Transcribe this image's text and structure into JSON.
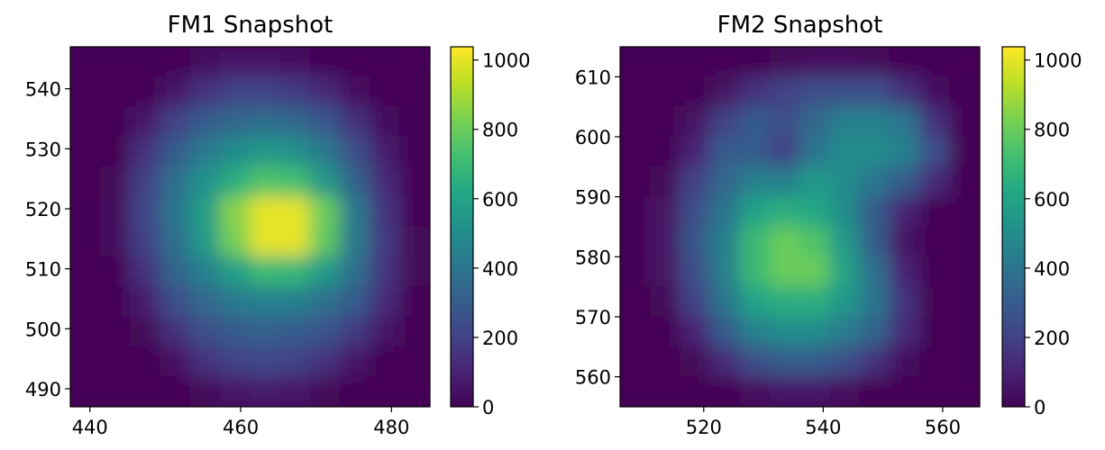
{
  "chart_data": [
    {
      "type": "heatmap",
      "title": "FM1 Snapshot",
      "colormap": "viridis",
      "xlim": [
        437.4,
        485.1
      ],
      "ylim": [
        487,
        547
      ],
      "xticks": [
        440,
        460,
        480
      ],
      "yticks": [
        490,
        500,
        510,
        520,
        530,
        540
      ],
      "clim": [
        0,
        1038
      ],
      "cticks": [
        0,
        200,
        400,
        600,
        800,
        1000
      ],
      "z": [
        [
          0,
          0,
          0,
          0,
          30,
          60,
          60,
          40,
          10,
          0,
          0,
          0
        ],
        [
          0,
          0,
          0,
          60,
          150,
          200,
          200,
          180,
          120,
          40,
          0,
          0
        ],
        [
          0,
          0,
          60,
          200,
          300,
          350,
          370,
          350,
          280,
          150,
          30,
          0
        ],
        [
          0,
          0,
          150,
          300,
          420,
          500,
          550,
          520,
          420,
          250,
          80,
          0
        ],
        [
          0,
          20,
          200,
          380,
          520,
          650,
          750,
          720,
          550,
          330,
          120,
          0
        ],
        [
          0,
          30,
          220,
          400,
          580,
          850,
          1000,
          1000,
          800,
          420,
          160,
          10
        ],
        [
          0,
          30,
          200,
          380,
          560,
          820,
          1000,
          1000,
          780,
          420,
          170,
          20
        ],
        [
          0,
          10,
          150,
          330,
          450,
          580,
          700,
          680,
          560,
          380,
          160,
          20
        ],
        [
          0,
          0,
          80,
          250,
          350,
          420,
          450,
          450,
          380,
          300,
          120,
          0
        ],
        [
          0,
          0,
          20,
          150,
          250,
          300,
          320,
          300,
          270,
          180,
          60,
          0
        ],
        [
          0,
          0,
          0,
          40,
          150,
          200,
          220,
          200,
          150,
          60,
          0,
          0
        ],
        [
          0,
          0,
          0,
          0,
          20,
          60,
          80,
          60,
          20,
          0,
          0,
          0
        ]
      ]
    },
    {
      "type": "heatmap",
      "title": "FM2 Snapshot",
      "colormap": "viridis",
      "xlim": [
        506,
        566.2
      ],
      "ylim": [
        555,
        615
      ],
      "xticks": [
        520,
        540,
        560
      ],
      "yticks": [
        560,
        570,
        580,
        590,
        600,
        610
      ],
      "clim": [
        0,
        1038
      ],
      "cticks": [
        0,
        200,
        400,
        600,
        800,
        1000
      ],
      "z": [
        [
          0,
          0,
          0,
          0,
          0,
          20,
          40,
          40,
          20,
          0,
          0,
          0
        ],
        [
          0,
          0,
          0,
          50,
          150,
          200,
          250,
          250,
          250,
          150,
          30,
          0
        ],
        [
          0,
          0,
          50,
          200,
          300,
          250,
          350,
          450,
          450,
          400,
          150,
          0
        ],
        [
          0,
          0,
          100,
          300,
          300,
          200,
          400,
          500,
          500,
          450,
          250,
          0
        ],
        [
          0,
          20,
          200,
          350,
          450,
          450,
          550,
          500,
          400,
          300,
          120,
          0
        ],
        [
          0,
          50,
          250,
          400,
          600,
          650,
          620,
          500,
          300,
          100,
          0,
          0
        ],
        [
          0,
          60,
          280,
          450,
          700,
          800,
          750,
          550,
          300,
          50,
          0,
          0
        ],
        [
          0,
          50,
          250,
          450,
          700,
          800,
          800,
          600,
          380,
          100,
          0,
          0
        ],
        [
          0,
          20,
          200,
          400,
          600,
          650,
          650,
          550,
          400,
          150,
          0,
          0
        ],
        [
          0,
          0,
          100,
          300,
          450,
          500,
          500,
          430,
          330,
          120,
          0,
          0
        ],
        [
          0,
          0,
          20,
          120,
          250,
          300,
          300,
          250,
          150,
          30,
          0,
          0
        ],
        [
          0,
          0,
          0,
          0,
          40,
          60,
          60,
          40,
          0,
          0,
          0,
          0
        ]
      ]
    }
  ]
}
